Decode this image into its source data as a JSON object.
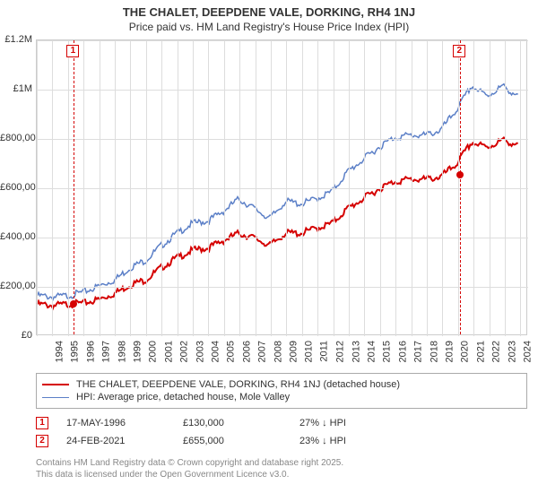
{
  "title1": "THE CHALET, DEEPDENE VALE, DORKING, RH4 1NJ",
  "title2": "Price paid vs. HM Land Registry's House Price Index (HPI)",
  "chart": {
    "type": "line",
    "background_color": "#ffffff",
    "grid_color": "#dddddd",
    "border_color": "#cccccc",
    "x_years": [
      1994,
      1995,
      1996,
      1997,
      1998,
      1999,
      2000,
      2001,
      2002,
      2003,
      2004,
      2005,
      2006,
      2007,
      2008,
      2009,
      2010,
      2011,
      2012,
      2013,
      2014,
      2015,
      2016,
      2017,
      2018,
      2019,
      2020,
      2021,
      2022,
      2023,
      2024,
      2025
    ],
    "xlim": [
      1994,
      2025.5
    ],
    "ylim": [
      0,
      1200000
    ],
    "ytick_step": 200000,
    "ytick_labels": [
      "£0",
      "£200,000",
      "£400,000",
      "£600,000",
      "£800,000",
      "£1M",
      "£1.2M"
    ],
    "label_fontsize": 11,
    "title_fontsize": 13,
    "series": [
      {
        "name": "price_paid",
        "color": "#d50000",
        "line_width": 2,
        "data": [
          [
            1994,
            130000
          ],
          [
            1995,
            125000
          ],
          [
            1996,
            130000
          ],
          [
            1997,
            135000
          ],
          [
            1998,
            150000
          ],
          [
            1999,
            175000
          ],
          [
            2000,
            210000
          ],
          [
            2001,
            230000
          ],
          [
            2002,
            280000
          ],
          [
            2003,
            320000
          ],
          [
            2004,
            350000
          ],
          [
            2005,
            360000
          ],
          [
            2006,
            390000
          ],
          [
            2007,
            420000
          ],
          [
            2008,
            400000
          ],
          [
            2009,
            370000
          ],
          [
            2010,
            420000
          ],
          [
            2011,
            420000
          ],
          [
            2012,
            440000
          ],
          [
            2013,
            460000
          ],
          [
            2014,
            520000
          ],
          [
            2015,
            560000
          ],
          [
            2016,
            600000
          ],
          [
            2017,
            630000
          ],
          [
            2018,
            640000
          ],
          [
            2019,
            640000
          ],
          [
            2020,
            650000
          ],
          [
            2021,
            700000
          ],
          [
            2022,
            790000
          ],
          [
            2023,
            770000
          ],
          [
            2024,
            800000
          ],
          [
            2025,
            780000
          ]
        ]
      },
      {
        "name": "hpi",
        "color": "#5b7fc7",
        "line_width": 1.5,
        "data": [
          [
            1994,
            165000
          ],
          [
            1995,
            160000
          ],
          [
            1996,
            165000
          ],
          [
            1997,
            180000
          ],
          [
            1998,
            205000
          ],
          [
            1999,
            230000
          ],
          [
            2000,
            280000
          ],
          [
            2001,
            310000
          ],
          [
            2002,
            370000
          ],
          [
            2003,
            420000
          ],
          [
            2004,
            460000
          ],
          [
            2005,
            470000
          ],
          [
            2006,
            510000
          ],
          [
            2007,
            560000
          ],
          [
            2008,
            520000
          ],
          [
            2009,
            480000
          ],
          [
            2010,
            550000
          ],
          [
            2011,
            540000
          ],
          [
            2012,
            560000
          ],
          [
            2013,
            590000
          ],
          [
            2014,
            670000
          ],
          [
            2015,
            720000
          ],
          [
            2016,
            770000
          ],
          [
            2017,
            810000
          ],
          [
            2018,
            820000
          ],
          [
            2019,
            820000
          ],
          [
            2020,
            840000
          ],
          [
            2021,
            920000
          ],
          [
            2022,
            1020000
          ],
          [
            2023,
            980000
          ],
          [
            2024,
            1020000
          ],
          [
            2025,
            980000
          ]
        ]
      }
    ],
    "markers": [
      {
        "n": "1",
        "year": 1996.38,
        "price": 130000,
        "color": "#d50000"
      },
      {
        "n": "2",
        "year": 2021.15,
        "price": 655000,
        "color": "#d50000"
      }
    ]
  },
  "legend": {
    "items": [
      {
        "color": "#d50000",
        "width": 2,
        "label": "THE CHALET, DEEPDENE VALE, DORKING, RH4 1NJ (detached house)"
      },
      {
        "color": "#5b7fc7",
        "width": 1.5,
        "label": "HPI: Average price, detached house, Mole Valley"
      }
    ]
  },
  "sales": [
    {
      "n": "1",
      "color": "#d50000",
      "date": "17-MAY-1996",
      "price": "£130,000",
      "delta": "27% ↓ HPI"
    },
    {
      "n": "2",
      "color": "#d50000",
      "date": "24-FEB-2021",
      "price": "£655,000",
      "delta": "23% ↓ HPI"
    }
  ],
  "footnote1": "Contains HM Land Registry data © Crown copyright and database right 2025.",
  "footnote2": "This data is licensed under the Open Government Licence v3.0."
}
